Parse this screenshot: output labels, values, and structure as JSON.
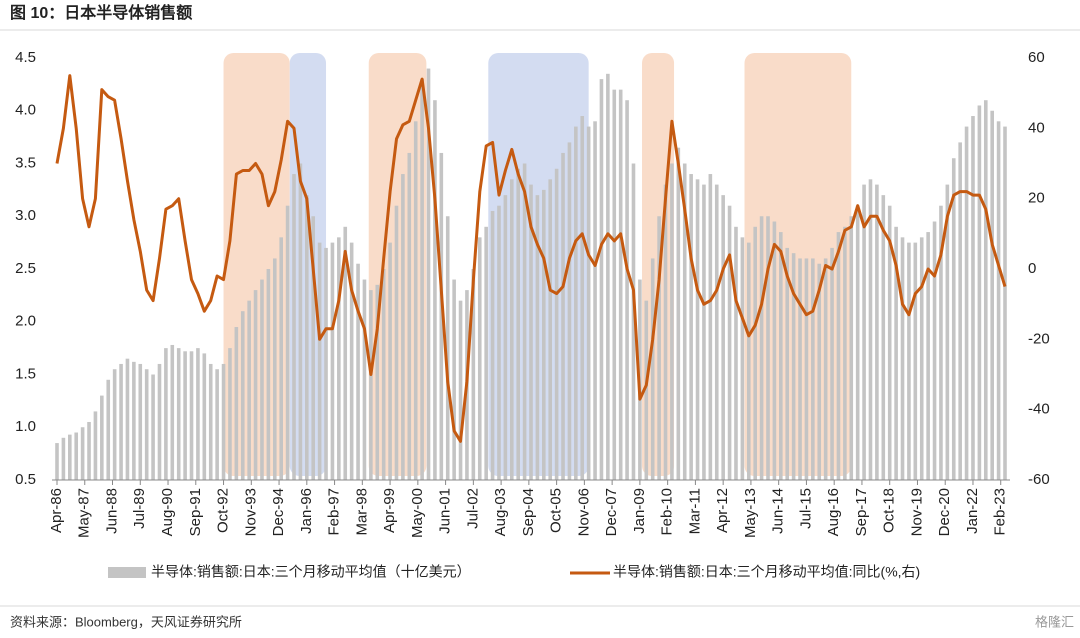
{
  "chart_data": {
    "type": "combo",
    "title": "图 10：日本半导体销售额",
    "source": "资料来源：Bloomberg，天风证券研究所",
    "watermark": "格隆汇",
    "x": [
      "1986-04",
      "1986-07",
      "1986-10",
      "1987-01",
      "1987-04",
      "1987-07",
      "1987-10",
      "1988-01",
      "1988-04",
      "1988-07",
      "1988-10",
      "1989-01",
      "1989-04",
      "1989-07",
      "1989-10",
      "1990-01",
      "1990-04",
      "1990-07",
      "1990-10",
      "1991-01",
      "1991-04",
      "1991-07",
      "1991-10",
      "1992-01",
      "1992-04",
      "1992-07",
      "1992-10",
      "1993-01",
      "1993-04",
      "1993-07",
      "1993-10",
      "1994-01",
      "1994-04",
      "1994-07",
      "1994-10",
      "1995-01",
      "1995-04",
      "1995-07",
      "1995-10",
      "1996-01",
      "1996-04",
      "1996-07",
      "1996-10",
      "1997-01",
      "1997-04",
      "1997-07",
      "1997-10",
      "1998-01",
      "1998-04",
      "1998-07",
      "1998-10",
      "1999-01",
      "1999-04",
      "1999-07",
      "1999-10",
      "2000-01",
      "2000-04",
      "2000-07",
      "2000-10",
      "2001-01",
      "2001-04",
      "2001-07",
      "2001-10",
      "2002-01",
      "2002-04",
      "2002-07",
      "2002-10",
      "2003-01",
      "2003-04",
      "2003-07",
      "2003-10",
      "2004-01",
      "2004-04",
      "2004-07",
      "2004-10",
      "2005-01",
      "2005-04",
      "2005-07",
      "2005-10",
      "2006-01",
      "2006-04",
      "2006-07",
      "2006-10",
      "2007-01",
      "2007-04",
      "2007-07",
      "2007-10",
      "2008-01",
      "2008-04",
      "2008-07",
      "2008-10",
      "2009-01",
      "2009-04",
      "2009-07",
      "2009-10",
      "2010-01",
      "2010-04",
      "2010-07",
      "2010-10",
      "2011-01",
      "2011-04",
      "2011-07",
      "2011-10",
      "2012-01",
      "2012-04",
      "2012-07",
      "2012-10",
      "2013-01",
      "2013-04",
      "2013-07",
      "2013-10",
      "2014-01",
      "2014-04",
      "2014-07",
      "2014-10",
      "2015-01",
      "2015-04",
      "2015-07",
      "2015-10",
      "2016-01",
      "2016-04",
      "2016-07",
      "2016-10",
      "2017-01",
      "2017-04",
      "2017-07",
      "2017-10",
      "2018-01",
      "2018-04",
      "2018-07",
      "2018-10",
      "2019-01",
      "2019-04",
      "2019-07",
      "2019-10",
      "2020-01",
      "2020-04",
      "2020-07",
      "2020-10",
      "2021-01",
      "2021-04",
      "2021-07",
      "2021-10",
      "2022-01",
      "2022-04",
      "2022-07",
      "2022-10",
      "2023-01",
      "2023-04"
    ],
    "series": [
      {
        "name": "半导体:销售额:日本:三个月移动平均值（十亿美元）",
        "type": "bar",
        "color": "#c4c4c4",
        "values": [
          0.85,
          0.9,
          0.93,
          0.95,
          1.0,
          1.05,
          1.15,
          1.3,
          1.45,
          1.55,
          1.6,
          1.65,
          1.62,
          1.6,
          1.55,
          1.5,
          1.6,
          1.75,
          1.78,
          1.75,
          1.72,
          1.72,
          1.75,
          1.7,
          1.6,
          1.55,
          1.6,
          1.75,
          1.95,
          2.1,
          2.2,
          2.3,
          2.4,
          2.5,
          2.6,
          2.8,
          3.1,
          3.4,
          3.5,
          3.2,
          3.0,
          2.75,
          2.7,
          2.75,
          2.8,
          2.9,
          2.75,
          2.55,
          2.4,
          2.3,
          2.35,
          2.5,
          2.75,
          3.1,
          3.4,
          3.6,
          3.9,
          4.3,
          4.4,
          4.1,
          3.6,
          3.0,
          2.4,
          2.2,
          2.3,
          2.5,
          2.8,
          2.9,
          3.05,
          3.1,
          3.2,
          3.35,
          3.45,
          3.5,
          3.3,
          3.2,
          3.25,
          3.35,
          3.45,
          3.6,
          3.7,
          3.85,
          3.95,
          3.85,
          3.9,
          4.3,
          4.35,
          4.2,
          4.2,
          4.1,
          3.5,
          2.4,
          2.2,
          2.6,
          3.0,
          3.3,
          3.5,
          3.65,
          3.5,
          3.4,
          3.35,
          3.3,
          3.4,
          3.3,
          3.2,
          3.1,
          2.9,
          2.8,
          2.75,
          2.9,
          3.0,
          3.0,
          2.95,
          2.85,
          2.7,
          2.65,
          2.6,
          2.6,
          2.6,
          2.55,
          2.6,
          2.7,
          2.85,
          2.9,
          3.0,
          3.1,
          3.3,
          3.35,
          3.3,
          3.2,
          3.1,
          2.9,
          2.8,
          2.75,
          2.75,
          2.8,
          2.85,
          2.95,
          3.1,
          3.3,
          3.55,
          3.7,
          3.85,
          3.95,
          4.05,
          4.1,
          4.0,
          3.9,
          3.85
        ]
      },
      {
        "name": "半导体:销售额:日本:三个月移动平均值:同比(%,右)",
        "type": "line",
        "axis": "y2",
        "color": "#c55a11",
        "values": [
          30,
          40,
          55,
          40,
          20,
          12,
          20,
          51,
          49,
          48,
          37,
          25,
          14,
          5,
          -6,
          -9,
          3,
          17,
          18,
          20,
          8,
          -3,
          -7,
          -12,
          -9,
          -2,
          -3,
          8,
          27,
          28,
          28,
          30,
          27,
          18,
          22,
          31,
          42,
          40,
          25,
          20,
          0,
          -20,
          -17,
          -17,
          -9,
          5,
          -6,
          -12,
          -17,
          -30,
          -17,
          3,
          22,
          37,
          41,
          42,
          48,
          54,
          40,
          20,
          -6,
          -32,
          -46,
          -49,
          -32,
          -3,
          22,
          35,
          36,
          21,
          28,
          34,
          27,
          22,
          12,
          7,
          3,
          -6,
          -7,
          -5,
          3,
          8,
          10,
          4,
          1,
          7,
          10,
          8,
          10,
          0,
          -6,
          -37,
          -33,
          -20,
          -3,
          20,
          42,
          30,
          17,
          3,
          -6,
          -10,
          -9,
          -6,
          0,
          4,
          -9,
          -14,
          -19,
          -16,
          -10,
          0,
          7,
          5,
          -2,
          -7,
          -10,
          -13,
          -12,
          -6,
          1,
          0,
          5,
          11,
          12,
          18,
          12,
          15,
          15,
          11,
          8,
          1,
          -10,
          -13,
          -7,
          -5,
          0,
          -2,
          4,
          15,
          21,
          22,
          22,
          21,
          21,
          17,
          7,
          1,
          -5
        ]
      }
    ],
    "shaded_periods": [
      {
        "start": "1992-10",
        "end": "1995-05",
        "color": "#f9dcc9"
      },
      {
        "start": "1995-05",
        "end": "1996-10",
        "color": "#d3dcf1"
      },
      {
        "start": "1998-06",
        "end": "2000-09",
        "color": "#f9dcc9"
      },
      {
        "start": "2003-02",
        "end": "2007-01",
        "color": "#d3dcf1"
      },
      {
        "start": "2009-02",
        "end": "2010-05",
        "color": "#f9dcc9"
      },
      {
        "start": "2013-02",
        "end": "2017-04",
        "color": "#f9dcc9"
      }
    ],
    "xlim": [
      "1986-04",
      "2023-04"
    ],
    "xticks": [
      {
        "value": "1986-04",
        "label": "Apr-86"
      },
      {
        "value": "1987-05",
        "label": "May-87"
      },
      {
        "value": "1988-06",
        "label": "Jun-88"
      },
      {
        "value": "1989-07",
        "label": "Jul-89"
      },
      {
        "value": "1990-08",
        "label": "Aug-90"
      },
      {
        "value": "1991-09",
        "label": "Sep-91"
      },
      {
        "value": "1992-10",
        "label": "Oct-92"
      },
      {
        "value": "1993-11",
        "label": "Nov-93"
      },
      {
        "value": "1994-12",
        "label": "Dec-94"
      },
      {
        "value": "1996-01",
        "label": "Jan-96"
      },
      {
        "value": "1997-02",
        "label": "Feb-97"
      },
      {
        "value": "1998-03",
        "label": "Mar-98"
      },
      {
        "value": "1999-04",
        "label": "Apr-99"
      },
      {
        "value": "2000-05",
        "label": "May-00"
      },
      {
        "value": "2001-06",
        "label": "Jun-01"
      },
      {
        "value": "2002-07",
        "label": "Jul-02"
      },
      {
        "value": "2003-08",
        "label": "Aug-03"
      },
      {
        "value": "2004-09",
        "label": "Sep-04"
      },
      {
        "value": "2005-10",
        "label": "Oct-05"
      },
      {
        "value": "2006-11",
        "label": "Nov-06"
      },
      {
        "value": "2007-12",
        "label": "Dec-07"
      },
      {
        "value": "2009-01",
        "label": "Jan-09"
      },
      {
        "value": "2010-02",
        "label": "Feb-10"
      },
      {
        "value": "2011-03",
        "label": "Mar-11"
      },
      {
        "value": "2012-04",
        "label": "Apr-12"
      },
      {
        "value": "2013-05",
        "label": "May-13"
      },
      {
        "value": "2014-06",
        "label": "Jun-14"
      },
      {
        "value": "2015-07",
        "label": "Jul-15"
      },
      {
        "value": "2016-08",
        "label": "Aug-16"
      },
      {
        "value": "2017-09",
        "label": "Sep-17"
      },
      {
        "value": "2018-10",
        "label": "Oct-18"
      },
      {
        "value": "2019-11",
        "label": "Nov-19"
      },
      {
        "value": "2020-12",
        "label": "Dec-20"
      },
      {
        "value": "2022-01",
        "label": "Jan-22"
      },
      {
        "value": "2023-02",
        "label": "Feb-23"
      }
    ],
    "ylim": [
      0.5,
      4.5
    ],
    "yticks": [
      0.5,
      {
        "value": 1,
        "label": "1.0"
      },
      1.5,
      {
        "value": 2,
        "label": "2.0"
      },
      2.5,
      {
        "value": 3,
        "label": "3.0"
      },
      3.5,
      {
        "value": 4,
        "label": "4.0"
      },
      4.5
    ],
    "y2lim": [
      -60,
      60
    ],
    "y2ticks": [
      -60,
      -40,
      -20,
      0,
      20,
      40,
      60
    ]
  }
}
